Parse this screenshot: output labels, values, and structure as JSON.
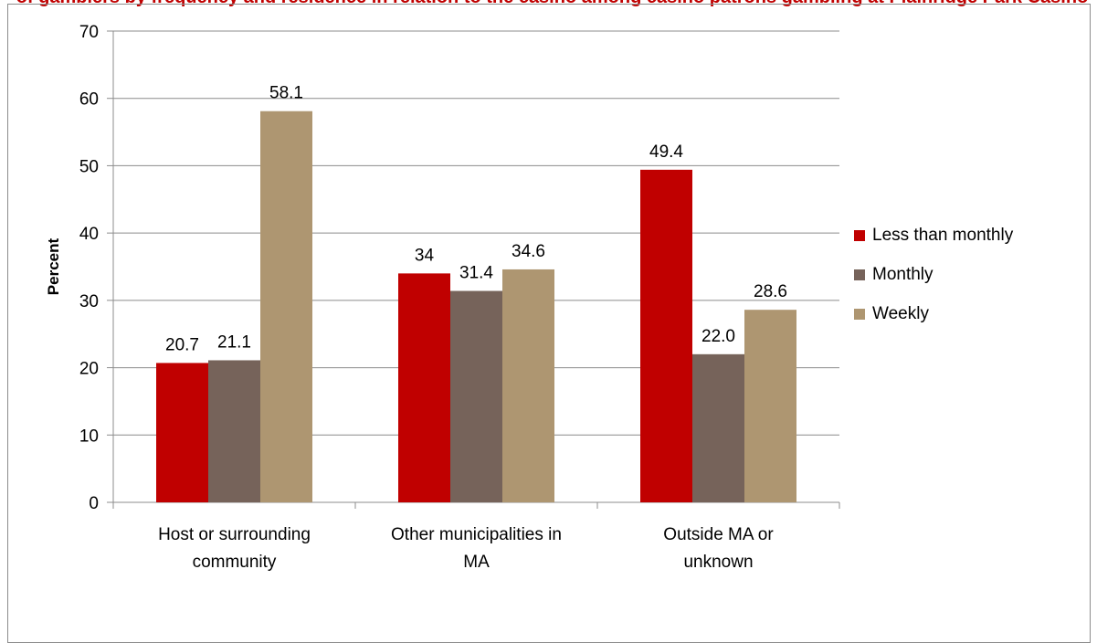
{
  "title": "of gamblers by frequency and residence in relation to the casino among casino patrons gambling at Plainridge Park Casino",
  "chart_data": {
    "type": "bar",
    "title": "of gamblers by frequency and residence in relation to the casino among casino patrons gambling at Plainridge Park Casino",
    "ylabel": "Percent",
    "xlabel": "",
    "ylim": [
      0,
      70
    ],
    "yticks": [
      0,
      10,
      20,
      30,
      40,
      50,
      60,
      70
    ],
    "grid": true,
    "legend_position": "right",
    "categories": [
      [
        "Host or surrounding",
        "community"
      ],
      [
        "Other municipalities in",
        "MA"
      ],
      [
        "Outside MA or",
        "unknown"
      ]
    ],
    "series": [
      {
        "name": "Less than monthly",
        "color": "#c00000",
        "values": [
          20.7,
          34,
          49.4
        ],
        "labels": [
          "20.7",
          "34",
          "49.4"
        ]
      },
      {
        "name": "Monthly",
        "color": "#76635a",
        "values": [
          21.1,
          31.4,
          22.0
        ],
        "labels": [
          "21.1",
          "31.4",
          "22.0"
        ]
      },
      {
        "name": "Weekly",
        "color": "#ae9671",
        "values": [
          58.1,
          34.6,
          28.6
        ],
        "labels": [
          "58.1",
          "34.6",
          "28.6"
        ]
      }
    ]
  }
}
